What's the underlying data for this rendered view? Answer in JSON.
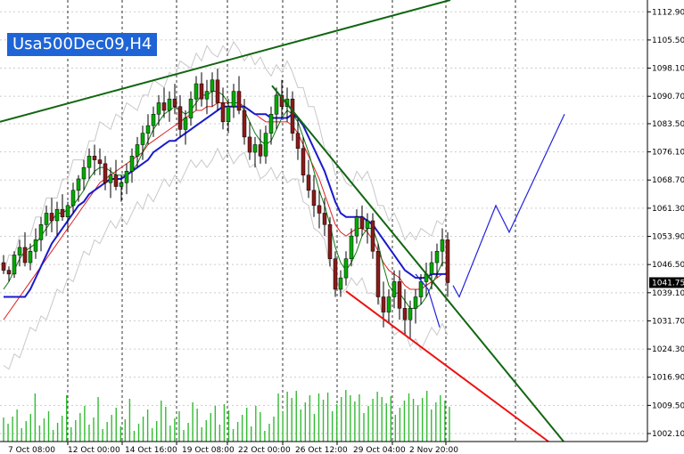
{
  "symbol_label": "Usa500Dec09,H4",
  "chart_data": {
    "type": "candlestick",
    "symbol": "Usa500Dec09",
    "timeframe": "H4",
    "ylim": [
      1000.0,
      1116.0
    ],
    "y_ticks": [
      "1112.90",
      "1105.50",
      "1098.10",
      "1090.70",
      "1083.50",
      "1076.10",
      "1068.70",
      "1061.30",
      "1053.90",
      "1046.50",
      "1039.10",
      "1031.70",
      "1024.30",
      "1016.90",
      "1009.50",
      "1002.10"
    ],
    "x_ticks": [
      "7 Oct 08:00",
      "12 Oct 00:00",
      "14 Oct 16:00",
      "19 Oct 08:00",
      "22 Oct 00:00",
      "26 Oct 12:00",
      "29 Oct 04:00",
      "2 Nov 20:00"
    ],
    "last_price": "1041.75",
    "colors": {
      "bull": "#00aa00",
      "bear": "#8b1a1a",
      "ma_blue": "#1a1acc",
      "ma_red": "#dd2222",
      "ma_green": "#117711",
      "bollinger": "#c8c8c8",
      "trendline_green": "#116611",
      "trendline_red": "#ee1111",
      "forecast": "#2222dd",
      "volume": "#33bb33",
      "grid": "#cccccc",
      "vgrid": "#333333",
      "badge": "#1e64d6"
    },
    "candles": [
      [
        1047,
        1049,
        1044,
        1045
      ],
      [
        1045,
        1046,
        1042,
        1044
      ],
      [
        1044,
        1050,
        1043,
        1049
      ],
      [
        1049,
        1053,
        1046,
        1051
      ],
      [
        1051,
        1055,
        1046,
        1047
      ],
      [
        1047,
        1052,
        1045,
        1050
      ],
      [
        1050,
        1056,
        1048,
        1053
      ],
      [
        1053,
        1059,
        1050,
        1057
      ],
      [
        1057,
        1062,
        1054,
        1060
      ],
      [
        1060,
        1064,
        1055,
        1058
      ],
      [
        1058,
        1063,
        1054,
        1061
      ],
      [
        1061,
        1065,
        1058,
        1059
      ],
      [
        1059,
        1063,
        1055,
        1062
      ],
      [
        1062,
        1068,
        1060,
        1066
      ],
      [
        1066,
        1070,
        1063,
        1069
      ],
      [
        1069,
        1074,
        1066,
        1072
      ],
      [
        1072,
        1077,
        1069,
        1075
      ],
      [
        1075,
        1078,
        1070,
        1074
      ],
      [
        1074,
        1077,
        1070,
        1073
      ],
      [
        1073,
        1075,
        1066,
        1068
      ],
      [
        1068,
        1072,
        1064,
        1070
      ],
      [
        1070,
        1074,
        1066,
        1067
      ],
      [
        1067,
        1070,
        1063,
        1068
      ],
      [
        1068,
        1073,
        1065,
        1071
      ],
      [
        1071,
        1077,
        1068,
        1075
      ],
      [
        1075,
        1080,
        1072,
        1078
      ],
      [
        1078,
        1083,
        1074,
        1081
      ],
      [
        1081,
        1086,
        1078,
        1083
      ],
      [
        1083,
        1088,
        1080,
        1086
      ],
      [
        1086,
        1091,
        1083,
        1089
      ],
      [
        1089,
        1093,
        1085,
        1087
      ],
      [
        1087,
        1092,
        1084,
        1090
      ],
      [
        1090,
        1094,
        1086,
        1088
      ],
      [
        1088,
        1091,
        1080,
        1082
      ],
      [
        1082,
        1087,
        1078,
        1085
      ],
      [
        1085,
        1092,
        1083,
        1090
      ],
      [
        1090,
        1096,
        1087,
        1094
      ],
      [
        1094,
        1097,
        1088,
        1090
      ],
      [
        1090,
        1095,
        1086,
        1092
      ],
      [
        1092,
        1097,
        1088,
        1095
      ],
      [
        1095,
        1098,
        1087,
        1089
      ],
      [
        1089,
        1093,
        1082,
        1084
      ],
      [
        1084,
        1090,
        1081,
        1088
      ],
      [
        1088,
        1094,
        1085,
        1092
      ],
      [
        1092,
        1096,
        1086,
        1087
      ],
      [
        1087,
        1090,
        1078,
        1080
      ],
      [
        1080,
        1084,
        1074,
        1076
      ],
      [
        1076,
        1080,
        1072,
        1078
      ],
      [
        1078,
        1082,
        1073,
        1075
      ],
      [
        1075,
        1083,
        1073,
        1081
      ],
      [
        1081,
        1088,
        1078,
        1086
      ],
      [
        1086,
        1093,
        1082,
        1091
      ],
      [
        1091,
        1095,
        1085,
        1088
      ],
      [
        1088,
        1093,
        1084,
        1090
      ],
      [
        1090,
        1092,
        1079,
        1081
      ],
      [
        1081,
        1085,
        1074,
        1077
      ],
      [
        1077,
        1080,
        1068,
        1070
      ],
      [
        1070,
        1074,
        1064,
        1066
      ],
      [
        1066,
        1070,
        1059,
        1062
      ],
      [
        1062,
        1066,
        1056,
        1060
      ],
      [
        1060,
        1064,
        1054,
        1057
      ],
      [
        1057,
        1059,
        1046,
        1048
      ],
      [
        1048,
        1050,
        1038,
        1040
      ],
      [
        1040,
        1045,
        1038,
        1043
      ],
      [
        1043,
        1050,
        1041,
        1048
      ],
      [
        1048,
        1056,
        1046,
        1054
      ],
      [
        1054,
        1061,
        1052,
        1059
      ],
      [
        1059,
        1062,
        1054,
        1056
      ],
      [
        1056,
        1060,
        1052,
        1058
      ],
      [
        1058,
        1060,
        1048,
        1050
      ],
      [
        1050,
        1052,
        1036,
        1038
      ],
      [
        1038,
        1042,
        1030,
        1034
      ],
      [
        1034,
        1040,
        1031,
        1038
      ],
      [
        1038,
        1045,
        1035,
        1042
      ],
      [
        1042,
        1045,
        1032,
        1035
      ],
      [
        1035,
        1040,
        1028,
        1032
      ],
      [
        1032,
        1037,
        1027,
        1035
      ],
      [
        1035,
        1040,
        1031,
        1038
      ],
      [
        1038,
        1044,
        1036,
        1042
      ],
      [
        1042,
        1047,
        1038,
        1044
      ],
      [
        1044,
        1050,
        1040,
        1047
      ],
      [
        1047,
        1052,
        1043,
        1050
      ],
      [
        1050,
        1056,
        1046,
        1053
      ],
      [
        1053,
        1055,
        1038,
        1041.75
      ]
    ],
    "ma_blue": [
      1038,
      1038,
      1038,
      1038,
      1038,
      1040,
      1043,
      1046,
      1049,
      1052,
      1054,
      1056,
      1058,
      1060,
      1062,
      1063,
      1065,
      1066,
      1067,
      1068,
      1069,
      1069,
      1069,
      1070,
      1071,
      1072,
      1073,
      1074,
      1076,
      1077,
      1078,
      1079,
      1079,
      1080,
      1081,
      1082,
      1083,
      1084,
      1085,
      1086,
      1087,
      1088,
      1088,
      1088,
      1088,
      1088,
      1087,
      1086,
      1086,
      1086,
      1085,
      1085,
      1085,
      1085,
      1086,
      1085,
      1083,
      1080,
      1077,
      1074,
      1071,
      1067,
      1063,
      1060,
      1059,
      1059,
      1059,
      1059,
      1058,
      1057,
      1055,
      1053,
      1051,
      1049,
      1047,
      1045,
      1044,
      1043,
      1043,
      1043,
      1044,
      1044,
      1044,
      1044
    ],
    "ma_red": [
      1032,
      1034,
      1036,
      1038,
      1040,
      1042,
      1044,
      1046,
      1048,
      1050,
      1052,
      1054,
      1056,
      1058,
      1060,
      1062,
      1064,
      1066,
      1068,
      1069,
      1070,
      1071,
      1072,
      1073,
      1074,
      1075,
      1076,
      1078,
      1079,
      1080,
      1081,
      1082,
      1083,
      1084,
      1085,
      1086,
      1087,
      1087,
      1088,
      1088,
      1089,
      1089,
      1089,
      1089,
      1089,
      1088,
      1087,
      1086,
      1085,
      1084,
      1084,
      1084,
      1084,
      1084,
      1083,
      1081,
      1078,
      1075,
      1072,
      1069,
      1065,
      1061,
      1057,
      1055,
      1054,
      1055,
      1056,
      1056,
      1055,
      1053,
      1050,
      1047,
      1045,
      1044,
      1043,
      1041,
      1040,
      1040,
      1040,
      1041,
      1042,
      1043,
      1044,
      1044
    ],
    "ma_green": [
      1040,
      1042,
      1045,
      1048,
      1050,
      1051,
      1052,
      1054,
      1056,
      1058,
      1060,
      1060,
      1061,
      1062,
      1064,
      1066,
      1069,
      1071,
      1072,
      1072,
      1071,
      1070,
      1070,
      1070,
      1071,
      1073,
      1076,
      1079,
      1082,
      1084,
      1086,
      1087,
      1088,
      1087,
      1086,
      1087,
      1089,
      1091,
      1091,
      1092,
      1092,
      1091,
      1089,
      1089,
      1089,
      1087,
      1084,
      1081,
      1079,
      1078,
      1079,
      1082,
      1085,
      1087,
      1086,
      1084,
      1080,
      1076,
      1071,
      1066,
      1062,
      1057,
      1051,
      1047,
      1045,
      1047,
      1050,
      1054,
      1056,
      1056,
      1052,
      1046,
      1041,
      1039,
      1039,
      1037,
      1035,
      1035,
      1036,
      1038,
      1041,
      1044,
      1047,
      1047
    ]
  }
}
